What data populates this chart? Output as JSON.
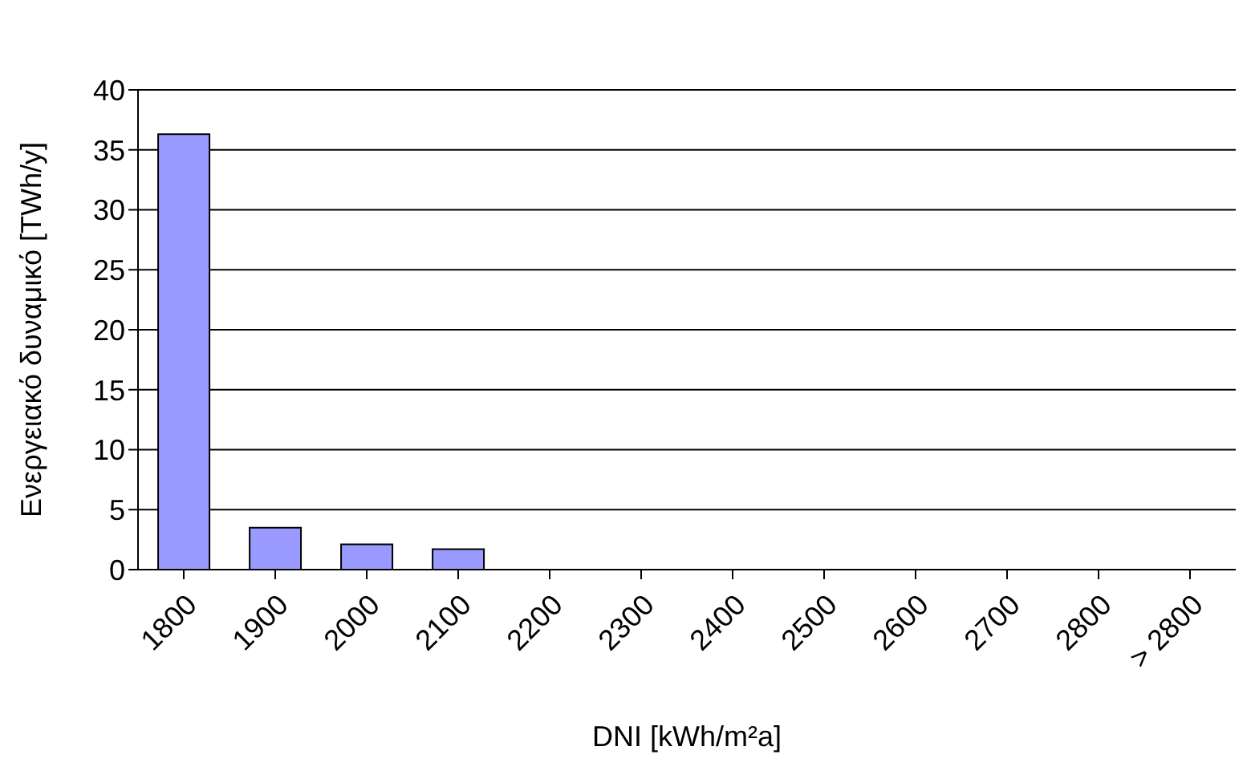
{
  "chart_data": {
    "type": "bar",
    "xlabel": "DNI [kWh/m²a]",
    "ylabel": "Ενεργειακό δυναμικό [TWh/y]",
    "categories": [
      "1800",
      "1900",
      "2000",
      "2100",
      "2200",
      "2300",
      "2400",
      "2500",
      "2600",
      "2700",
      "2800",
      "> 2800"
    ],
    "values": [
      36.3,
      3.5,
      2.1,
      1.7,
      0,
      0,
      0,
      0,
      0,
      0,
      0,
      0
    ],
    "color": "#9999ff",
    "ylim": [
      0,
      40
    ],
    "yticks": [
      0,
      5,
      10,
      15,
      20,
      25,
      30,
      35,
      40
    ],
    "grid": "y"
  }
}
